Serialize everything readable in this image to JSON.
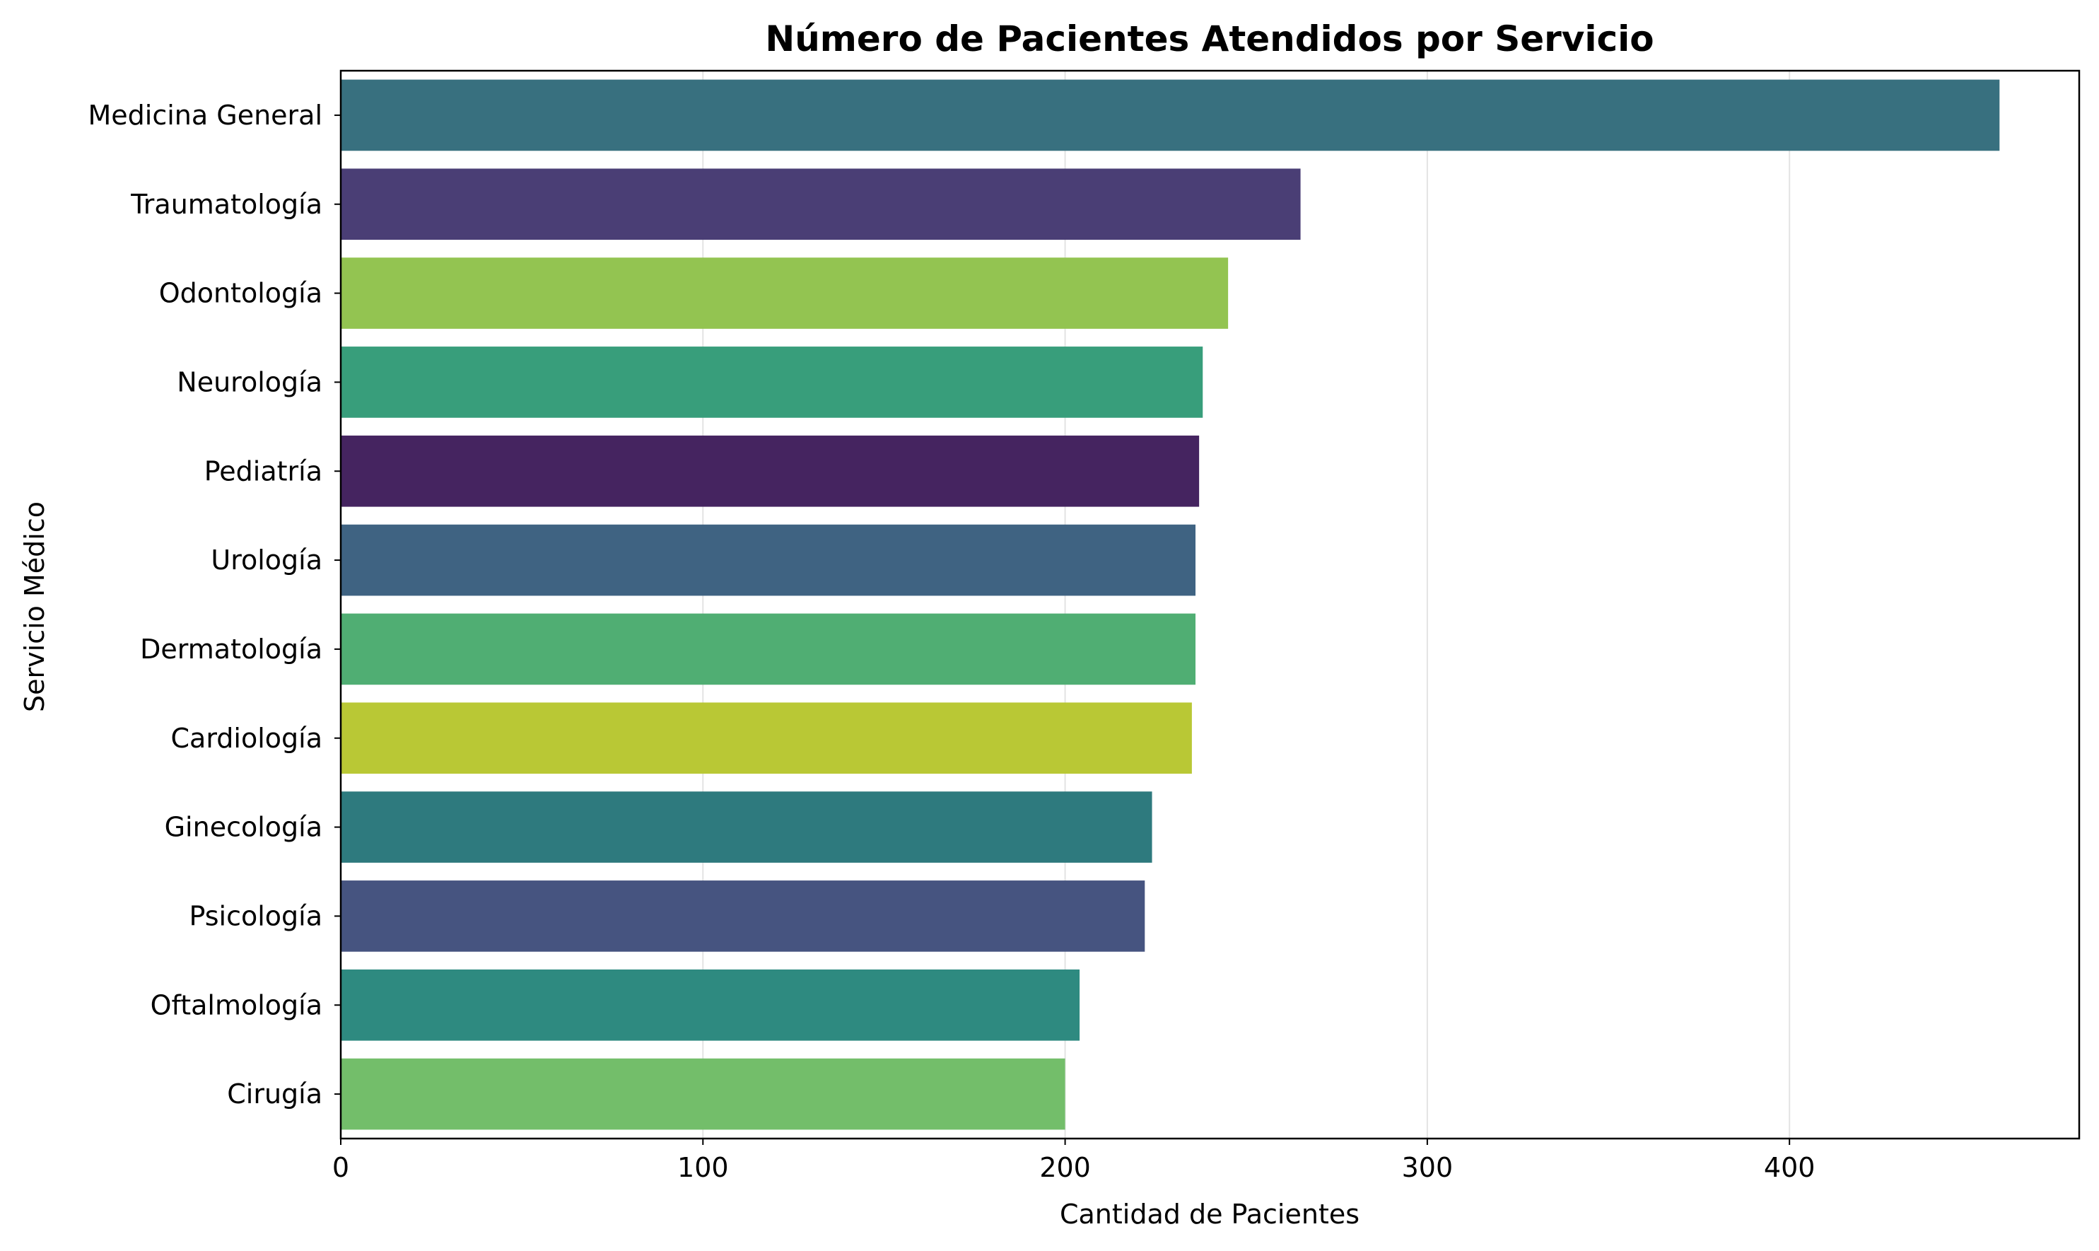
{
  "chart_data": {
    "type": "bar",
    "orientation": "horizontal",
    "title": "Número de Pacientes Atendidos por Servicio",
    "xlabel": "Cantidad de Pacientes",
    "ylabel": "Servicio Médico",
    "xlim": [
      0,
      480
    ],
    "xticks": [
      0,
      100,
      200,
      300,
      400
    ],
    "grid": "x",
    "categories": [
      "Medicina General",
      "Traumatología",
      "Odontología",
      "Neurología",
      "Pediatría",
      "Urología",
      "Dermatología",
      "Cardiología",
      "Ginecología",
      "Psicología",
      "Oftalmología",
      "Cirugía"
    ],
    "values": [
      458,
      265,
      245,
      238,
      237,
      236,
      236,
      235,
      224,
      222,
      204,
      200
    ],
    "colors": [
      "#38707f",
      "#4a3e75",
      "#93c451",
      "#389e7b",
      "#452460",
      "#3f6382",
      "#50ae73",
      "#b9c835",
      "#2e7a7e",
      "#465480",
      "#2e8a80",
      "#73be6a"
    ]
  }
}
